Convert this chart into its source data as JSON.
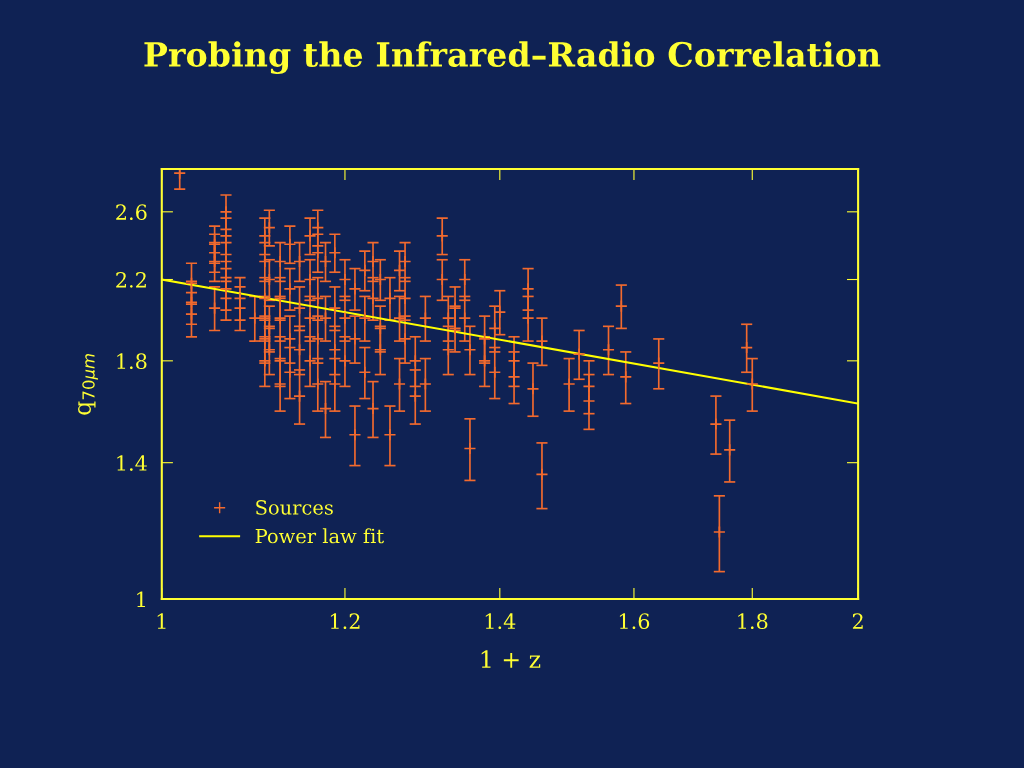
{
  "chart_data": {
    "type": "scatter",
    "title": "Probing the Infrared–Radio Correlation",
    "xlabel": "1 + z",
    "ylabel": "q$_{70μm}$",
    "log": "xy",
    "xlim": [
      1,
      2
    ],
    "xticks": [
      1,
      1.2,
      1.4,
      1.6,
      1.8,
      2
    ],
    "ylim": [
      1,
      2.89
    ],
    "yticks": [
      1,
      1.4,
      1.8,
      2.2,
      2.6
    ],
    "grid": false,
    "legend": "bottom left",
    "series": [
      {
        "name": "Sources",
        "marker": "cross",
        "color": "#f26a2e",
        "x": [
          1.018,
          1.03,
          1.03,
          1.03,
          1.054,
          1.054,
          1.054,
          1.054,
          1.066,
          1.066,
          1.066,
          1.066,
          1.066,
          1.081,
          1.081,
          1.097,
          1.108,
          1.108,
          1.108,
          1.108,
          1.108,
          1.108,
          1.113,
          1.113,
          1.113,
          1.113,
          1.125,
          1.125,
          1.125,
          1.125,
          1.125,
          1.136,
          1.136,
          1.136,
          1.136,
          1.147,
          1.147,
          1.147,
          1.147,
          1.159,
          1.159,
          1.159,
          1.159,
          1.168,
          1.168,
          1.168,
          1.168,
          1.168,
          1.177,
          1.177,
          1.177,
          1.188,
          1.188,
          1.188,
          1.188,
          1.2,
          1.2,
          1.2,
          1.212,
          1.212,
          1.212,
          1.224,
          1.224,
          1.224,
          1.234,
          1.234,
          1.234,
          1.243,
          1.243,
          1.243,
          1.255,
          1.255,
          1.267,
          1.267,
          1.267,
          1.274,
          1.274,
          1.274,
          1.287,
          1.287,
          1.3,
          1.3,
          1.322,
          1.322,
          1.33,
          1.33,
          1.339,
          1.339,
          1.352,
          1.352,
          1.359,
          1.359,
          1.379,
          1.379,
          1.393,
          1.393,
          1.4,
          1.42,
          1.42,
          1.44,
          1.44,
          1.447,
          1.46,
          1.46,
          1.5,
          1.515,
          1.53,
          1.53,
          1.56,
          1.58,
          1.587,
          1.64,
          1.736,
          1.742,
          1.76,
          1.79,
          1.8
        ],
        "values": [
          2.86,
          2.18,
          2.08,
          2.02,
          2.4,
          2.35,
          2.3,
          2.05,
          2.6,
          2.45,
          2.3,
          2.15,
          2.1,
          2.05,
          2.1,
          2.0,
          2.45,
          2.3,
          2.1,
          2.0,
          1.9,
          1.8,
          2.5,
          2.2,
          1.95,
          1.85,
          2.3,
          2.1,
          2.0,
          1.7,
          1.8,
          2.4,
          2.15,
          1.9,
          1.75,
          2.3,
          2.05,
          1.65,
          1.85,
          2.45,
          2.2,
          2.0,
          1.8,
          2.5,
          2.35,
          2.1,
          1.9,
          1.7,
          2.3,
          2.0,
          1.6,
          2.35,
          2.05,
          1.85,
          1.7,
          2.2,
          2.0,
          1.8,
          2.15,
          1.9,
          1.5,
          2.25,
          2.0,
          1.75,
          2.3,
          2.1,
          1.6,
          2.2,
          1.95,
          1.85,
          2.1,
          1.5,
          2.25,
          2.0,
          1.7,
          2.3,
          2.1,
          1.9,
          1.8,
          1.65,
          2.0,
          1.7,
          2.45,
          2.2,
          2.0,
          1.85,
          2.05,
          1.95,
          2.2,
          2.0,
          1.85,
          1.45,
          1.9,
          1.8,
          1.75,
          1.95,
          2.03,
          1.8,
          1.73,
          2.15,
          2.0,
          1.68,
          1.89,
          1.36,
          1.7,
          1.83,
          1.63,
          1.69,
          1.85,
          2.06,
          1.73,
          1.79,
          1.54,
          1.18,
          1.445,
          1.86,
          1.7
        ],
        "errors": [
          0.11,
          0.11,
          0.11,
          0.11,
          0.11,
          0.11,
          0.11,
          0.11,
          0.11,
          0.11,
          0.11,
          0.11,
          0.11,
          0.11,
          0.11,
          0.11,
          0.11,
          0.11,
          0.11,
          0.11,
          0.11,
          0.11,
          0.11,
          0.11,
          0.11,
          0.11,
          0.11,
          0.11,
          0.11,
          0.11,
          0.11,
          0.11,
          0.11,
          0.11,
          0.11,
          0.11,
          0.11,
          0.11,
          0.11,
          0.11,
          0.11,
          0.11,
          0.11,
          0.11,
          0.11,
          0.11,
          0.11,
          0.11,
          0.11,
          0.11,
          0.11,
          0.11,
          0.11,
          0.11,
          0.11,
          0.11,
          0.11,
          0.11,
          0.11,
          0.11,
          0.11,
          0.11,
          0.11,
          0.11,
          0.11,
          0.11,
          0.11,
          0.11,
          0.11,
          0.11,
          0.11,
          0.11,
          0.11,
          0.11,
          0.11,
          0.11,
          0.11,
          0.11,
          0.11,
          0.11,
          0.11,
          0.11,
          0.11,
          0.11,
          0.11,
          0.11,
          0.11,
          0.11,
          0.11,
          0.11,
          0.11,
          0.11,
          0.11,
          0.11,
          0.11,
          0.11,
          0.11,
          0.11,
          0.11,
          0.11,
          0.11,
          0.11,
          0.11,
          0.11,
          0.11,
          0.11,
          0.11,
          0.11,
          0.11,
          0.11,
          0.11,
          0.11,
          0.11,
          0.11,
          0.11,
          0.11,
          0.11
        ]
      },
      {
        "name": "Power law fit",
        "type": "line",
        "marker": "none",
        "line_style": "solid",
        "color": "#ffff00",
        "x": [
          1,
          2
        ],
        "values": [
          2.2,
          1.62
        ]
      }
    ]
  }
}
